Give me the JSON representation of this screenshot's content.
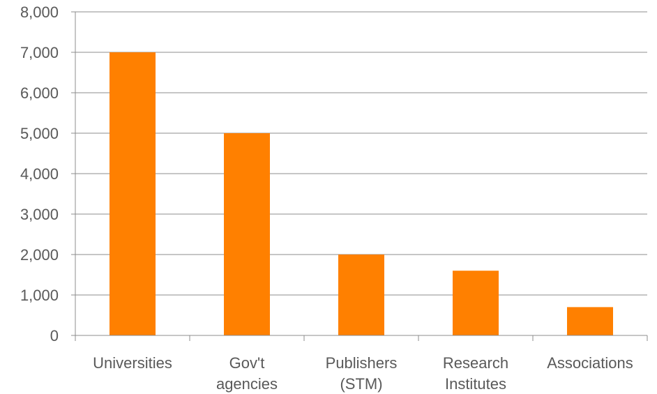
{
  "chart_data": {
    "type": "bar",
    "categories": [
      [
        "Universities"
      ],
      [
        "Gov't",
        "agencies"
      ],
      [
        "Publishers",
        "(STM)"
      ],
      [
        "Research",
        "Institutes"
      ],
      [
        "Associations"
      ]
    ],
    "values": [
      7000,
      5000,
      2000,
      1600,
      700
    ],
    "y_ticks": [
      "0",
      "1,000",
      "2,000",
      "3,000",
      "4,000",
      "5,000",
      "6,000",
      "7,000",
      "8,000"
    ],
    "ylim": [
      0,
      8000
    ],
    "grid": true,
    "legend": "none",
    "bar_color": "#ff8000"
  }
}
